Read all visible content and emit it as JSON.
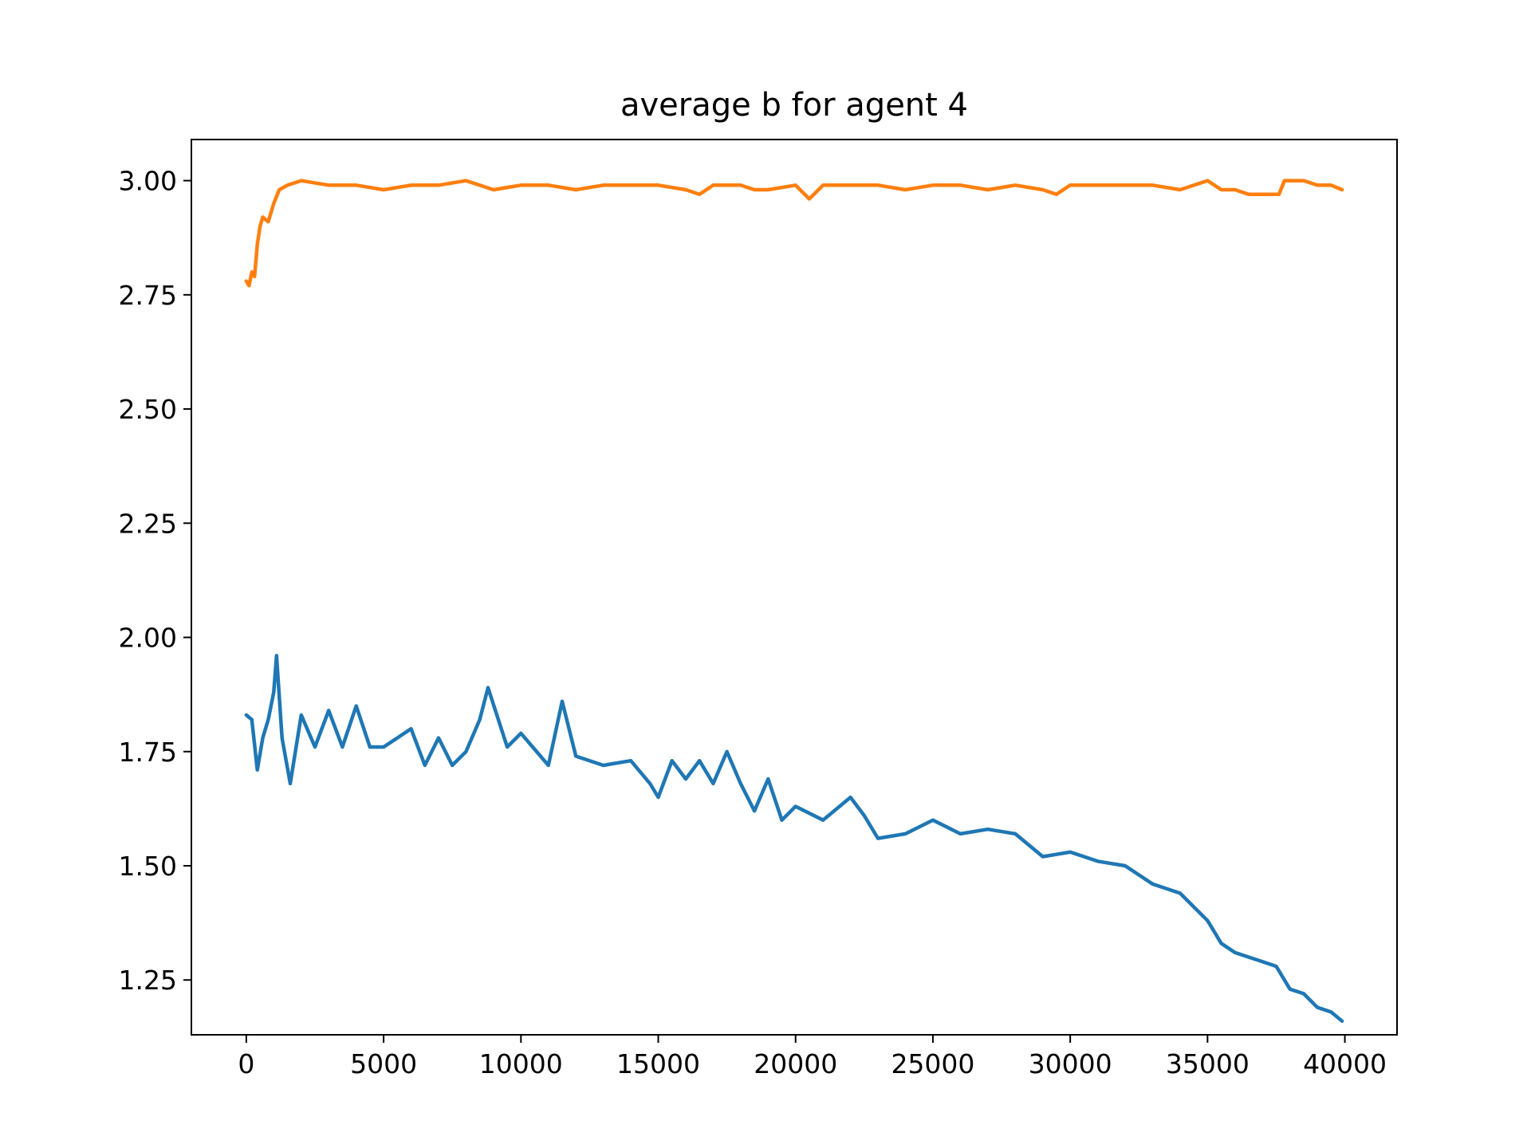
{
  "chart_data": {
    "type": "line",
    "title": "average b for agent 4",
    "xlabel": "",
    "ylabel": "",
    "xlim": [
      -2000,
      41900
    ],
    "ylim": [
      1.13,
      3.09
    ],
    "xticks": [
      0,
      5000,
      10000,
      15000,
      20000,
      25000,
      30000,
      35000,
      40000
    ],
    "xtick_labels": [
      "0",
      "5000",
      "10000",
      "15000",
      "20000",
      "25000",
      "30000",
      "35000",
      "40000"
    ],
    "yticks": [
      1.25,
      1.5,
      1.75,
      2.0,
      2.25,
      2.5,
      2.75,
      3.0
    ],
    "ytick_labels": [
      "1.25",
      "1.50",
      "1.75",
      "2.00",
      "2.25",
      "2.50",
      "2.75",
      "3.00"
    ],
    "grid": false,
    "legend": "none",
    "series": [
      {
        "color": "#1f77b4",
        "x": [
          0,
          200,
          400,
          600,
          800,
          1000,
          1100,
          1300,
          1600,
          2000,
          2500,
          3000,
          3500,
          4000,
          4500,
          5000,
          5500,
          6000,
          6500,
          7000,
          7500,
          8000,
          8500,
          8800,
          9500,
          10000,
          11000,
          11500,
          12000,
          13000,
          14000,
          14700,
          15000,
          15500,
          16000,
          16500,
          17000,
          17500,
          18000,
          18500,
          19000,
          19500,
          20000,
          21000,
          22000,
          22500,
          23000,
          24000,
          25000,
          26000,
          27000,
          28000,
          29000,
          30000,
          31000,
          32000,
          33000,
          34000,
          35000,
          35500,
          36000,
          37000,
          37500,
          38000,
          38500,
          39000,
          39500,
          39900
        ],
        "values": [
          1.83,
          1.82,
          1.71,
          1.78,
          1.82,
          1.88,
          1.96,
          1.78,
          1.68,
          1.83,
          1.76,
          1.84,
          1.76,
          1.85,
          1.76,
          1.76,
          1.78,
          1.8,
          1.72,
          1.78,
          1.72,
          1.75,
          1.82,
          1.89,
          1.76,
          1.79,
          1.72,
          1.86,
          1.74,
          1.72,
          1.73,
          1.68,
          1.65,
          1.73,
          1.69,
          1.73,
          1.68,
          1.75,
          1.68,
          1.62,
          1.69,
          1.6,
          1.63,
          1.6,
          1.65,
          1.61,
          1.56,
          1.57,
          1.6,
          1.57,
          1.58,
          1.57,
          1.52,
          1.53,
          1.51,
          1.5,
          1.46,
          1.44,
          1.38,
          1.33,
          1.31,
          1.29,
          1.28,
          1.23,
          1.22,
          1.19,
          1.18,
          1.16
        ]
      },
      {
        "color": "#ff7f0e",
        "x": [
          0,
          100,
          200,
          300,
          400,
          500,
          600,
          800,
          1000,
          1200,
          1500,
          2000,
          3000,
          4000,
          5000,
          6000,
          7000,
          8000,
          9000,
          10000,
          11000,
          12000,
          13000,
          14000,
          15000,
          16000,
          16500,
          17000,
          18000,
          18500,
          19000,
          20000,
          20500,
          21000,
          22000,
          23000,
          24000,
          25000,
          26000,
          27000,
          28000,
          29000,
          29500,
          30000,
          31000,
          32000,
          33000,
          34000,
          35000,
          35500,
          36000,
          36500,
          37000,
          37600,
          37800,
          38500,
          39000,
          39500,
          39900
        ],
        "values": [
          2.78,
          2.77,
          2.8,
          2.79,
          2.86,
          2.9,
          2.92,
          2.91,
          2.95,
          2.98,
          2.99,
          3.0,
          2.99,
          2.99,
          2.98,
          2.99,
          2.99,
          3.0,
          2.98,
          2.99,
          2.99,
          2.98,
          2.99,
          2.99,
          2.99,
          2.98,
          2.97,
          2.99,
          2.99,
          2.98,
          2.98,
          2.99,
          2.96,
          2.99,
          2.99,
          2.99,
          2.98,
          2.99,
          2.99,
          2.98,
          2.99,
          2.98,
          2.97,
          2.99,
          2.99,
          2.99,
          2.99,
          2.98,
          3.0,
          2.98,
          2.98,
          2.97,
          2.97,
          2.97,
          3.0,
          3.0,
          2.99,
          2.99,
          2.98
        ]
      }
    ]
  }
}
